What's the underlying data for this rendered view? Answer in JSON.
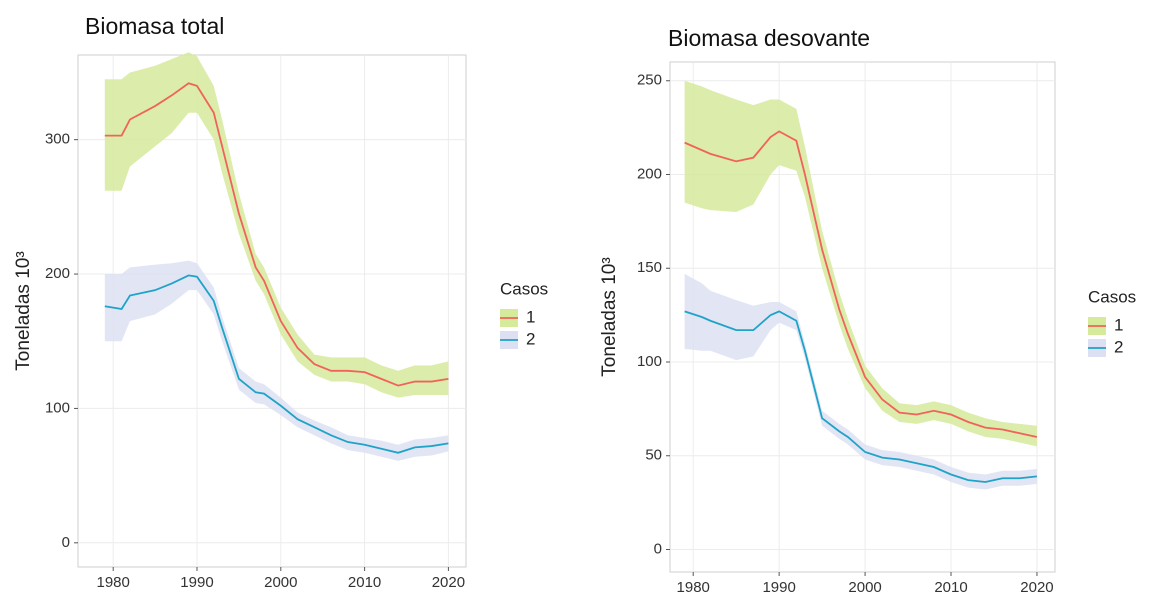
{
  "chart_data": [
    {
      "type": "line",
      "title": "Biomasa total",
      "y_label": "Toneladas 10³",
      "legend_title": "Casos",
      "grid": true,
      "x": [
        1979,
        1981,
        1982,
        1985,
        1987,
        1989,
        1990,
        1992,
        1993,
        1995,
        1997,
        1998,
        2000,
        2002,
        2004,
        2006,
        2008,
        2010,
        2012,
        2014,
        2016,
        2018,
        2020
      ],
      "xlim": [
        1975.8,
        2022.1
      ],
      "xticks": [
        1980,
        1990,
        2000,
        2010,
        2020
      ],
      "ylim": [
        -18,
        363
      ],
      "yticks": [
        0,
        100,
        200,
        300
      ],
      "series": [
        {
          "name": "1",
          "color": "#f0625a",
          "band_color": "#d6ea9c",
          "values": [
            303,
            303,
            315,
            325,
            333,
            342,
            340,
            320,
            295,
            245,
            205,
            195,
            165,
            145,
            133,
            128,
            128,
            127,
            122,
            117,
            120,
            120,
            122
          ],
          "upper": [
            345,
            345,
            350,
            355,
            360,
            365,
            362,
            340,
            315,
            260,
            215,
            205,
            175,
            155,
            140,
            138,
            138,
            138,
            132,
            128,
            132,
            132,
            135
          ],
          "lower": [
            262,
            262,
            280,
            295,
            305,
            320,
            320,
            300,
            275,
            230,
            195,
            185,
            155,
            135,
            125,
            120,
            120,
            118,
            112,
            108,
            110,
            110,
            110
          ]
        },
        {
          "name": "2",
          "color": "#1fa3c6",
          "band_color": "#dde0f2",
          "values": [
            176,
            174,
            184,
            188,
            193,
            199,
            198,
            180,
            160,
            122,
            112,
            111,
            102,
            92,
            86,
            80,
            75,
            73,
            70,
            67,
            71,
            72,
            74
          ],
          "upper": [
            200,
            200,
            205,
            207,
            208,
            210,
            208,
            190,
            168,
            130,
            120,
            118,
            108,
            97,
            91,
            86,
            80,
            78,
            76,
            73,
            77,
            78,
            80
          ],
          "lower": [
            150,
            150,
            165,
            170,
            178,
            188,
            188,
            170,
            150,
            114,
            104,
            103,
            95,
            86,
            80,
            74,
            69,
            67,
            64,
            61,
            64,
            65,
            68
          ]
        }
      ]
    },
    {
      "type": "line",
      "title": "Biomasa desovante",
      "y_label": "Toneladas 10³",
      "legend_title": "Casos",
      "grid": true,
      "x": [
        1979,
        1981,
        1982,
        1985,
        1987,
        1989,
        1990,
        1992,
        1993,
        1995,
        1997,
        1998,
        2000,
        2002,
        2004,
        2006,
        2008,
        2010,
        2012,
        2014,
        2016,
        2018,
        2020
      ],
      "xlim": [
        1977.3,
        2022.1
      ],
      "xticks": [
        1980,
        1990,
        2000,
        2010,
        2020
      ],
      "ylim": [
        -12,
        260
      ],
      "yticks": [
        0,
        50,
        100,
        150,
        200,
        250
      ],
      "series": [
        {
          "name": "1",
          "color": "#f0625a",
          "band_color": "#d6ea9c",
          "values": [
            217,
            213,
            211,
            207,
            209,
            220,
            223,
            218,
            200,
            160,
            128,
            115,
            92,
            80,
            73,
            72,
            74,
            72,
            68,
            65,
            64,
            62,
            60
          ],
          "upper": [
            250,
            247,
            245,
            240,
            237,
            240,
            240,
            235,
            215,
            170,
            137,
            123,
            98,
            86,
            78,
            77,
            79,
            77,
            73,
            70,
            68,
            67,
            66
          ],
          "lower": [
            185,
            182,
            181,
            180,
            184,
            200,
            205,
            202,
            188,
            150,
            120,
            107,
            86,
            74,
            68,
            67,
            69,
            67,
            63,
            60,
            59,
            57,
            55
          ]
        },
        {
          "name": "2",
          "color": "#1fa3c6",
          "band_color": "#dde0f2",
          "values": [
            127,
            124,
            122,
            117,
            117,
            125,
            127,
            122,
            106,
            70,
            63,
            60,
            52,
            49,
            48,
            46,
            44,
            40,
            37,
            36,
            38,
            38,
            39
          ],
          "upper": [
            147,
            142,
            138,
            133,
            130,
            132,
            132,
            127,
            110,
            74,
            67,
            64,
            56,
            53,
            52,
            50,
            48,
            44,
            41,
            40,
            42,
            42,
            43
          ],
          "lower": [
            107,
            106,
            106,
            101,
            103,
            117,
            121,
            117,
            102,
            66,
            59,
            56,
            48,
            45,
            44,
            42,
            40,
            36,
            33,
            32,
            34,
            34,
            35
          ]
        }
      ]
    }
  ]
}
